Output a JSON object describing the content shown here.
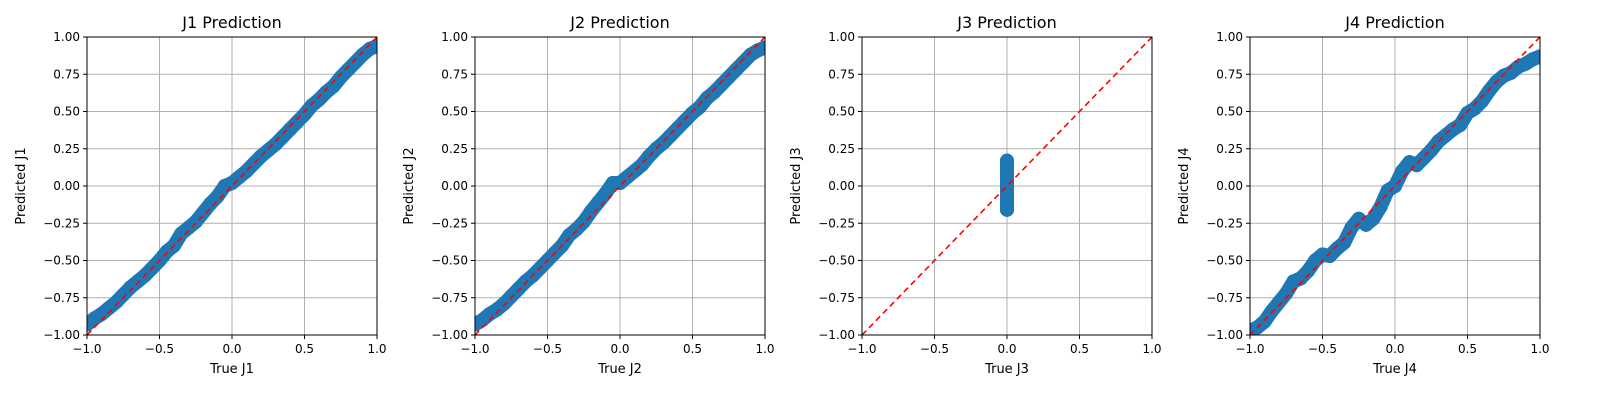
{
  "chart_data": [
    {
      "type": "scatter",
      "title": "J1 Prediction",
      "xlabel": "True J1",
      "ylabel": "Predicted J1",
      "xlim": [
        -1.0,
        1.0
      ],
      "ylim": [
        -1.0,
        1.0
      ],
      "xticks": [
        "-1.0",
        "-0.5",
        "0.0",
        "0.5",
        "1.0"
      ],
      "yticks": [
        "-1.00",
        "-0.75",
        "-0.50",
        "-0.25",
        "0.00",
        "0.25",
        "0.50",
        "0.75",
        "1.00"
      ],
      "grid": true,
      "reference_line": {
        "x": [
          -1.0,
          1.0
        ],
        "y": [
          -1.0,
          1.0
        ],
        "style": "dashed",
        "color": "#ff0000"
      },
      "points_color": "#1f77b4",
      "series": [
        {
          "x": [
            -1.0,
            -0.95,
            -0.9,
            -0.85,
            -0.8,
            -0.75,
            -0.7,
            -0.65,
            -0.6,
            -0.55,
            -0.5,
            -0.45,
            -0.4,
            -0.35,
            -0.3,
            -0.25,
            -0.2,
            -0.15,
            -0.1,
            -0.05,
            0.0,
            0.05,
            0.1,
            0.15,
            0.2,
            0.25,
            0.3,
            0.35,
            0.4,
            0.45,
            0.5,
            0.55,
            0.6,
            0.65,
            0.7,
            0.75,
            0.8,
            0.85,
            0.9,
            0.95,
            1.0
          ],
          "y": [
            -0.93,
            -0.89,
            -0.86,
            -0.82,
            -0.78,
            -0.73,
            -0.68,
            -0.64,
            -0.6,
            -0.55,
            -0.5,
            -0.44,
            -0.4,
            -0.32,
            -0.28,
            -0.24,
            -0.18,
            -0.12,
            -0.07,
            0.0,
            0.02,
            0.06,
            0.1,
            0.15,
            0.2,
            0.24,
            0.28,
            0.33,
            0.38,
            0.43,
            0.48,
            0.54,
            0.58,
            0.63,
            0.67,
            0.73,
            0.78,
            0.83,
            0.88,
            0.92,
            0.94
          ]
        }
      ]
    },
    {
      "type": "scatter",
      "title": "J2 Prediction",
      "xlabel": "True J2",
      "ylabel": "Predicted J2",
      "xlim": [
        -1.0,
        1.0
      ],
      "ylim": [
        -1.0,
        1.0
      ],
      "xticks": [
        "-1.0",
        "-0.5",
        "0.0",
        "0.5",
        "1.0"
      ],
      "yticks": [
        "-1.00",
        "-0.75",
        "-0.50",
        "-0.25",
        "0.00",
        "0.25",
        "0.50",
        "0.75",
        "1.00"
      ],
      "grid": true,
      "reference_line": {
        "x": [
          -1.0,
          1.0
        ],
        "y": [
          -1.0,
          1.0
        ],
        "style": "dashed",
        "color": "#ff0000"
      },
      "points_color": "#1f77b4",
      "series": [
        {
          "x": [
            -1.0,
            -0.95,
            -0.9,
            -0.85,
            -0.8,
            -0.75,
            -0.7,
            -0.65,
            -0.6,
            -0.55,
            -0.5,
            -0.45,
            -0.4,
            -0.35,
            -0.3,
            -0.25,
            -0.2,
            -0.15,
            -0.1,
            -0.05,
            0.0,
            0.05,
            0.1,
            0.15,
            0.2,
            0.25,
            0.3,
            0.35,
            0.4,
            0.45,
            0.5,
            0.55,
            0.6,
            0.65,
            0.7,
            0.75,
            0.8,
            0.85,
            0.9,
            0.95,
            1.0
          ],
          "y": [
            -0.93,
            -0.9,
            -0.86,
            -0.83,
            -0.79,
            -0.74,
            -0.69,
            -0.64,
            -0.6,
            -0.55,
            -0.5,
            -0.45,
            -0.4,
            -0.33,
            -0.29,
            -0.24,
            -0.17,
            -0.11,
            -0.05,
            0.02,
            0.02,
            0.06,
            0.1,
            0.14,
            0.2,
            0.25,
            0.29,
            0.34,
            0.39,
            0.44,
            0.49,
            0.53,
            0.59,
            0.63,
            0.68,
            0.73,
            0.78,
            0.83,
            0.88,
            0.91,
            0.93
          ]
        }
      ]
    },
    {
      "type": "scatter",
      "title": "J3 Prediction",
      "xlabel": "True J3",
      "ylabel": "Predicted J3",
      "xlim": [
        -1.0,
        1.0
      ],
      "ylim": [
        -1.0,
        1.0
      ],
      "xticks": [
        "-1.0",
        "-0.5",
        "0.0",
        "0.5",
        "1.0"
      ],
      "yticks": [
        "-1.00",
        "-0.75",
        "-0.50",
        "-0.25",
        "0.00",
        "0.25",
        "0.50",
        "0.75",
        "1.00"
      ],
      "grid": true,
      "reference_line": {
        "x": [
          -1.0,
          1.0
        ],
        "y": [
          -1.0,
          1.0
        ],
        "style": "dashed",
        "color": "#ff0000"
      },
      "points_color": "#1f77b4",
      "series": [
        {
          "x": [
            0.0,
            0.0,
            0.0,
            0.0,
            0.0,
            0.0,
            0.0,
            0.0,
            0.0,
            0.0,
            0.0,
            0.0,
            0.0
          ],
          "y": [
            -0.16,
            -0.13,
            -0.1,
            -0.07,
            -0.04,
            -0.01,
            0.02,
            0.05,
            0.08,
            0.1,
            0.12,
            0.15,
            0.17
          ]
        }
      ]
    },
    {
      "type": "scatter",
      "title": "J4 Prediction",
      "xlabel": "True J4",
      "ylabel": "Predicted J4",
      "xlim": [
        -1.0,
        1.0
      ],
      "ylim": [
        -1.0,
        1.0
      ],
      "xticks": [
        "-1.0",
        "-0.5",
        "0.0",
        "0.5",
        "1.0"
      ],
      "yticks": [
        "-1.00",
        "-0.75",
        "-0.50",
        "-0.25",
        "0.00",
        "0.25",
        "0.50",
        "0.75",
        "1.00"
      ],
      "grid": true,
      "reference_line": {
        "x": [
          -1.0,
          1.0
        ],
        "y": [
          -1.0,
          1.0
        ],
        "style": "dashed",
        "color": "#ff0000"
      },
      "points_color": "#1f77b4",
      "series": [
        {
          "x": [
            -1.0,
            -0.95,
            -0.9,
            -0.85,
            -0.8,
            -0.75,
            -0.7,
            -0.65,
            -0.6,
            -0.55,
            -0.5,
            -0.45,
            -0.4,
            -0.35,
            -0.3,
            -0.25,
            -0.2,
            -0.15,
            -0.1,
            -0.05,
            0.0,
            0.05,
            0.1,
            0.15,
            0.2,
            0.25,
            0.3,
            0.35,
            0.4,
            0.45,
            0.5,
            0.55,
            0.6,
            0.65,
            0.7,
            0.75,
            0.8,
            0.85,
            0.9,
            0.95,
            1.0
          ],
          "y": [
            -0.97,
            -0.95,
            -0.91,
            -0.84,
            -0.78,
            -0.72,
            -0.64,
            -0.62,
            -0.57,
            -0.5,
            -0.46,
            -0.47,
            -0.42,
            -0.38,
            -0.28,
            -0.22,
            -0.26,
            -0.22,
            -0.14,
            -0.03,
            0.0,
            0.1,
            0.16,
            0.14,
            0.19,
            0.24,
            0.3,
            0.34,
            0.38,
            0.41,
            0.49,
            0.52,
            0.57,
            0.64,
            0.7,
            0.74,
            0.76,
            0.8,
            0.82,
            0.85,
            0.87
          ]
        }
      ]
    }
  ]
}
